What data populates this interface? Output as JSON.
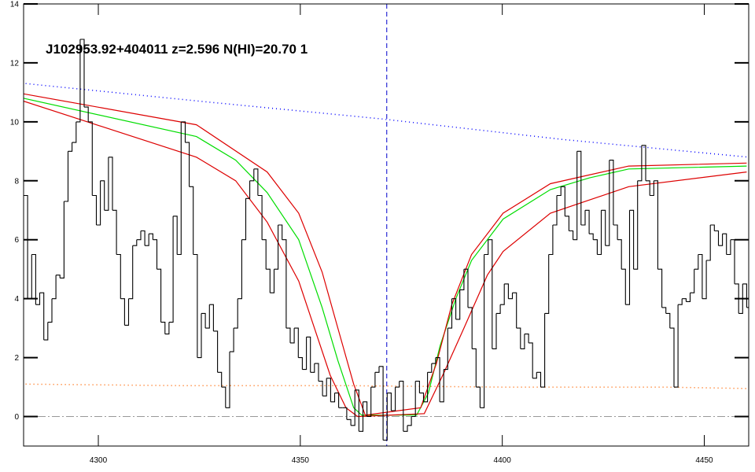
{
  "chart_data": {
    "type": "line",
    "title": "J102953.92+404011 z=2.596 N(HI)=20.70 1",
    "xlim": [
      4281.5,
      4461
    ],
    "ylim": [
      -1,
      14
    ],
    "xticks": [
      4300,
      4350,
      4400,
      4450
    ],
    "yticks": [
      0,
      2,
      4,
      6,
      8,
      10,
      12,
      14
    ],
    "vlines": [
      4371.4
    ],
    "hlines": [
      0
    ],
    "spectrum": {
      "color": "#000000",
      "x": [
        4282,
        4283,
        4284,
        4285,
        4286,
        4287,
        4288,
        4289,
        4290,
        4291,
        4292,
        4293,
        4294,
        4295,
        4296,
        4297,
        4298,
        4299,
        4300,
        4301,
        4302,
        4303,
        4304,
        4305,
        4306,
        4307,
        4308,
        4309,
        4310,
        4311,
        4312,
        4313,
        4314,
        4315,
        4316,
        4317,
        4318,
        4319,
        4320,
        4321,
        4322,
        4323,
        4324,
        4325,
        4326,
        4327,
        4328,
        4329,
        4330,
        4331,
        4332,
        4333,
        4334,
        4335,
        4336,
        4337,
        4338,
        4339,
        4340,
        4341,
        4342,
        4343,
        4344,
        4345,
        4346,
        4347,
        4348,
        4349,
        4350,
        4351,
        4352,
        4353,
        4354,
        4355,
        4356,
        4357,
        4358,
        4359,
        4360,
        4361,
        4362,
        4363,
        4364,
        4365,
        4366,
        4367,
        4368,
        4369,
        4370,
        4371,
        4372,
        4373,
        4374,
        4375,
        4376,
        4377,
        4378,
        4379,
        4380,
        4381,
        4382,
        4383,
        4384,
        4385,
        4386,
        4387,
        4388,
        4389,
        4390,
        4391,
        4392,
        4393,
        4394,
        4395,
        4396,
        4397,
        4398,
        4399,
        4400,
        4401,
        4402,
        4403,
        4404,
        4405,
        4406,
        4407,
        4408,
        4409,
        4410,
        4411,
        4412,
        4413,
        4414,
        4415,
        4416,
        4417,
        4418,
        4419,
        4420,
        4421,
        4422,
        4423,
        4424,
        4425,
        4426,
        4427,
        4428,
        4429,
        4430,
        4431,
        4432,
        4433,
        4434,
        4435,
        4436,
        4437,
        4438,
        4439,
        4440,
        4441,
        4442,
        4443,
        4444,
        4445,
        4446,
        4447,
        4448,
        4449,
        4450,
        4451,
        4452,
        4453,
        4454,
        4455,
        4456,
        4457,
        4458,
        4459,
        4460,
        4461
      ],
      "values": [
        7.5,
        4.0,
        5.5,
        3.8,
        4.2,
        2.6,
        3.2,
        4.0,
        4.8,
        4.7,
        7.3,
        9.0,
        9.3,
        10.0,
        12.8,
        10.5,
        10.0,
        7.5,
        6.5,
        8.0,
        7.0,
        8.8,
        7.0,
        5.5,
        4.0,
        3.1,
        4.0,
        5.8,
        6.0,
        6.3,
        5.8,
        6.2,
        6.0,
        5.0,
        3.2,
        2.8,
        3.2,
        6.8,
        5.5,
        10.0,
        9.3,
        7.8,
        5.5,
        2.0,
        3.5,
        3.0,
        3.8,
        2.9,
        1.5,
        1.0,
        0.3,
        2.2,
        3.0,
        4.0,
        6.0,
        7.4,
        8.0,
        8.4,
        7.5,
        6.0,
        5.0,
        4.2,
        5.0,
        6.5,
        6.0,
        3.0,
        2.5,
        3.0,
        2.0,
        1.6,
        2.7,
        1.5,
        1.8,
        1.2,
        0.7,
        1.3,
        0.5,
        0.8,
        0.3,
        0.3,
        -0.1,
        -0.3,
        0.9,
        -0.5,
        0.5,
        0.0,
        1.0,
        1.5,
        1.7,
        -0.8,
        0.8,
        0.2,
        1.0,
        1.2,
        -0.5,
        -0.3,
        0.0,
        1.2,
        0.8,
        0.5,
        1.5,
        1.8,
        2.0,
        0.5,
        1.6,
        3.0,
        4.0,
        3.3,
        4.3,
        5.0,
        3.7,
        2.3,
        1.0,
        0.3,
        5.5,
        6.0,
        2.3,
        3.5,
        3.8,
        4.5,
        4.0,
        4.2,
        3.0,
        2.3,
        2.8,
        2.5,
        1.3,
        1.5,
        1.0,
        3.5,
        5.5,
        6.5,
        7.5,
        7.8,
        6.8,
        6.3,
        6.0,
        9.0,
        6.5,
        7.0,
        6.2,
        6.0,
        5.5,
        7.0,
        5.8,
        8.7,
        6.5,
        6.0,
        5.0,
        3.8,
        7.0,
        5.0,
        8.0,
        9.2,
        8.0,
        7.5,
        8.0,
        5.0,
        3.7,
        3.5,
        3.0,
        1.0,
        3.8,
        4.0,
        3.9,
        4.2,
        5.0,
        5.5,
        4.0,
        5.3,
        6.5,
        6.3,
        5.8,
        6.2,
        5.5,
        6.0,
        4.5,
        3.5,
        4.5,
        3.7
      ]
    },
    "series": [
      {
        "color": "#0000ff",
        "style": "dotted",
        "x": [
          4282,
          4325,
          4370,
          4415,
          4461
        ],
        "values": [
          11.3,
          10.7,
          10.1,
          9.4,
          8.8
        ]
      },
      {
        "color": "#ff6600",
        "style": "dotted",
        "x": [
          4282,
          4320,
          4360,
          4400,
          4440,
          4461
        ],
        "values": [
          1.1,
          1.05,
          1.05,
          1.0,
          1.0,
          0.95
        ]
      },
      {
        "color": "#00dd00",
        "style": "solid",
        "x": [
          4281.5,
          4324.3,
          4334.0,
          4341.8,
          4349.6,
          4355.4,
          4359.3,
          4363.2,
          4365.2,
          4378.8,
          4381.7,
          4384.6,
          4388.5,
          4392.4,
          4400.2,
          4411.9,
          4421.6,
          4431.3,
          4460.5
        ],
        "values": [
          10.8,
          9.5,
          8.7,
          7.6,
          6.0,
          3.7,
          1.9,
          0.3,
          0.05,
          0.05,
          0.8,
          2.4,
          4.0,
          5.3,
          6.7,
          7.7,
          8.1,
          8.4,
          8.5
        ]
      },
      {
        "color": "#dd0000",
        "style": "solid",
        "x": [
          4281.5,
          4324.3,
          4341.8,
          4349.6,
          4355.4,
          4359.3,
          4363.2,
          4366.1,
          4379.8,
          4383.7,
          4387.5,
          4392.4,
          4400.2,
          4411.9,
          4431.3,
          4460.5
        ],
        "values": [
          10.95,
          9.9,
          8.3,
          6.9,
          4.9,
          3.0,
          1.1,
          0.05,
          0.3,
          1.8,
          3.8,
          5.5,
          6.9,
          7.9,
          8.5,
          8.6
        ]
      },
      {
        "color": "#dd0000",
        "style": "solid",
        "x": [
          4281.5,
          4324.3,
          4334.0,
          4341.8,
          4349.6,
          4353.5,
          4357.4,
          4361.3,
          4364.2,
          4380.7,
          4385.6,
          4390.5,
          4396.3,
          4400.2,
          4411.9,
          4431.3,
          4460.5
        ],
        "values": [
          10.7,
          8.8,
          8.0,
          6.6,
          4.6,
          3.0,
          1.4,
          0.3,
          0.0,
          0.1,
          1.5,
          3.0,
          4.8,
          5.6,
          6.9,
          7.8,
          8.3
        ]
      }
    ]
  }
}
